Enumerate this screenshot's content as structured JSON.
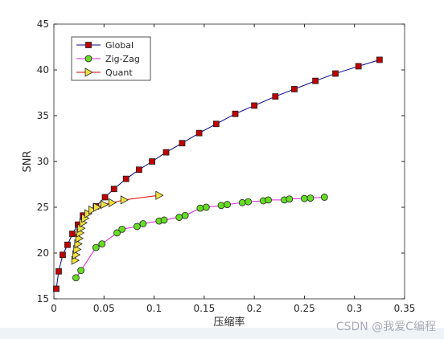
{
  "chart_data": {
    "type": "line",
    "xlabel": "压缩率",
    "ylabel": "SNR",
    "xlim": [
      0,
      0.35
    ],
    "xticks": [
      0,
      0.05,
      0.1,
      0.15,
      0.2,
      0.25,
      0.3,
      0.35
    ],
    "ylim": [
      15,
      45
    ],
    "yticks": [
      15,
      20,
      25,
      30,
      35,
      40,
      45
    ],
    "legend": "northwest",
    "series": [
      {
        "name": "Global",
        "color": "#00008b",
        "marker": "square",
        "marker_color": "#c00000",
        "x": [
          0.0024,
          0.0048,
          0.0088,
          0.0136,
          0.0185,
          0.024,
          0.029,
          0.042,
          0.051,
          0.06,
          0.072,
          0.085,
          0.098,
          0.112,
          0.128,
          0.145,
          0.162,
          0.181,
          0.2,
          0.221,
          0.24,
          0.261,
          0.281,
          0.304,
          0.325
        ],
        "values": [
          16.1,
          18.0,
          19.8,
          20.9,
          22.1,
          23.1,
          24.1,
          25.1,
          26.1,
          27.0,
          28.1,
          29.1,
          30.0,
          31.0,
          32.0,
          33.1,
          34.1,
          35.2,
          36.1,
          37.1,
          37.9,
          38.8,
          39.6,
          40.4,
          41.1
        ]
      },
      {
        "name": "Zig-Zag",
        "color": "#e020e0",
        "marker": "circle",
        "marker_color": "#66dd22",
        "x": [
          0.022,
          0.027,
          0.042,
          0.048,
          0.063,
          0.068,
          0.083,
          0.089,
          0.105,
          0.11,
          0.125,
          0.131,
          0.146,
          0.152,
          0.167,
          0.173,
          0.188,
          0.194,
          0.209,
          0.214,
          0.23,
          0.235,
          0.25,
          0.256,
          0.27
        ],
        "values": [
          17.3,
          18.1,
          20.6,
          21.0,
          22.2,
          22.6,
          22.9,
          23.2,
          23.5,
          23.6,
          23.9,
          24.1,
          24.9,
          25.0,
          25.2,
          25.3,
          25.5,
          25.6,
          25.7,
          25.8,
          25.8,
          25.9,
          25.95,
          26.0,
          26.1
        ]
      },
      {
        "name": "Quant",
        "color": "#e00000",
        "marker": "triangle-right",
        "marker_color": "#f0e040",
        "x": [
          0.021,
          0.022,
          0.023,
          0.024,
          0.025,
          0.026,
          0.027,
          0.029,
          0.031,
          0.034,
          0.038,
          0.043,
          0.05,
          0.058,
          0.07,
          0.105
        ],
        "values": [
          19.2,
          19.8,
          20.4,
          21.0,
          21.6,
          22.2,
          22.7,
          23.3,
          23.8,
          24.3,
          24.7,
          25.0,
          25.3,
          25.5,
          25.8,
          26.3
        ]
      }
    ]
  },
  "watermark": "CSDN @我爱C编程"
}
